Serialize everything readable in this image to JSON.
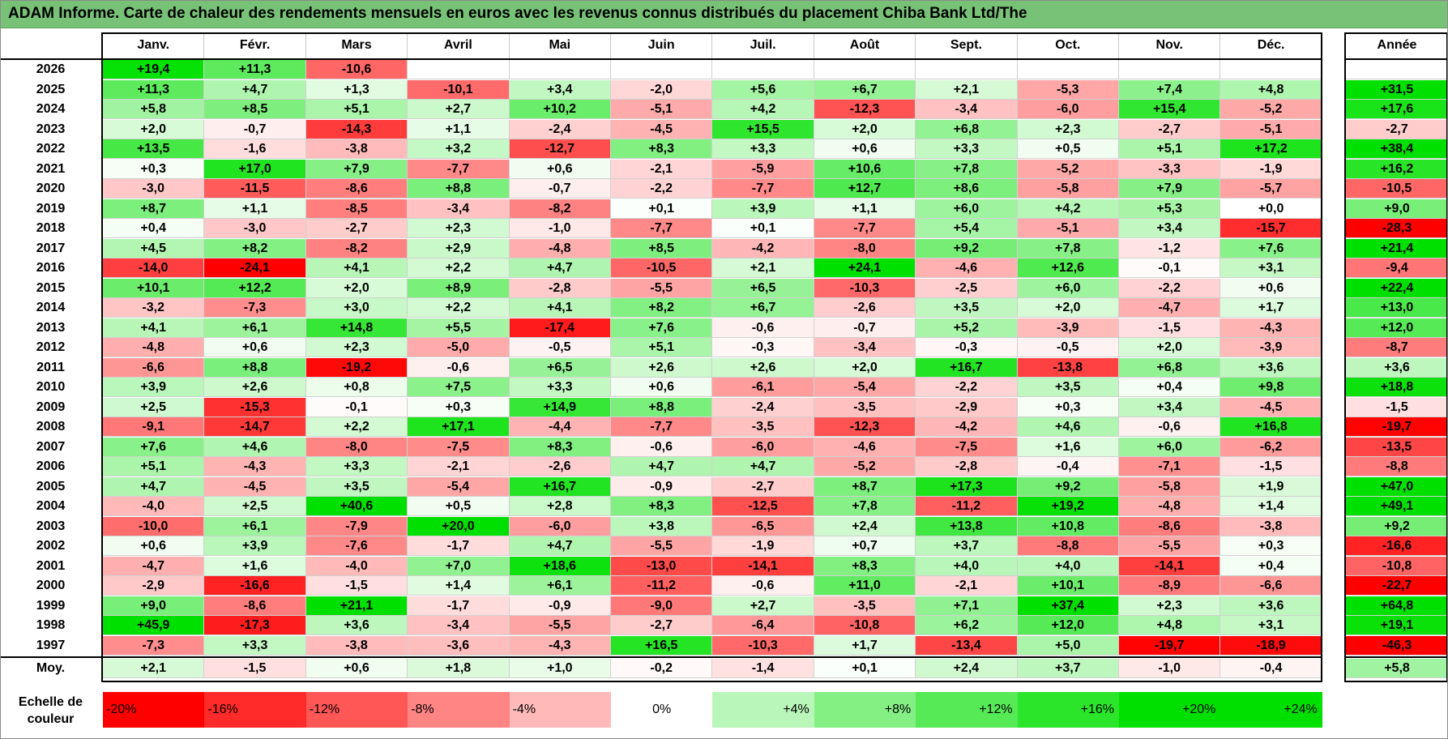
{
  "title": "ADAM Informe. Carte de chaleur des rendements mensuels en euros avec les revenus connus distribués du placement Chiba Bank Ltd/The",
  "chart_data": {
    "type": "heatmap",
    "title": "ADAM Informe. Carte de chaleur des rendements mensuels en euros avec les revenus connus distribués du placement Chiba Bank Ltd/The",
    "columns": [
      "Janv.",
      "Févr.",
      "Mars",
      "Avril",
      "Mai",
      "Juin",
      "Juil.",
      "Août",
      "Sept.",
      "Oct.",
      "Nov.",
      "Déc."
    ],
    "year_column": "Année",
    "rows": [
      {
        "year": "2026",
        "values": [
          "+19,4",
          "+11,3",
          "-10,6",
          "",
          "",
          "",
          "",
          "",
          "",
          "",
          "",
          ""
        ],
        "annual": ""
      },
      {
        "year": "2025",
        "values": [
          "+11,3",
          "+4,7",
          "+1,3",
          "-10,1",
          "+3,4",
          "-2,0",
          "+5,6",
          "+6,7",
          "+2,1",
          "-5,3",
          "+7,4",
          "+4,8"
        ],
        "annual": "+31,5"
      },
      {
        "year": "2024",
        "values": [
          "+5,8",
          "+8,5",
          "+5,1",
          "+2,7",
          "+10,2",
          "-5,1",
          "+4,2",
          "-12,3",
          "-3,4",
          "-6,0",
          "+15,4",
          "-5,2"
        ],
        "annual": "+17,6"
      },
      {
        "year": "2023",
        "values": [
          "+2,0",
          "-0,7",
          "-14,3",
          "+1,1",
          "-2,4",
          "-4,5",
          "+15,5",
          "+2,0",
          "+6,8",
          "+2,3",
          "-2,7",
          "-5,1"
        ],
        "annual": "-2,7"
      },
      {
        "year": "2022",
        "values": [
          "+13,5",
          "-1,6",
          "-3,8",
          "+3,2",
          "-12,7",
          "+8,3",
          "+3,3",
          "+0,6",
          "+3,3",
          "+0,5",
          "+5,1",
          "+17,2"
        ],
        "annual": "+38,4"
      },
      {
        "year": "2021",
        "values": [
          "+0,3",
          "+17,0",
          "+7,9",
          "-7,7",
          "+0,6",
          "-2,1",
          "-5,9",
          "+10,6",
          "+7,8",
          "-5,2",
          "-3,3",
          "-1,9"
        ],
        "annual": "+16,2"
      },
      {
        "year": "2020",
        "values": [
          "-3,0",
          "-11,5",
          "-8,6",
          "+8,8",
          "-0,7",
          "-2,2",
          "-7,7",
          "+12,7",
          "+8,6",
          "-5,8",
          "+7,9",
          "-5,7"
        ],
        "annual": "-10,5"
      },
      {
        "year": "2019",
        "values": [
          "+8,7",
          "+1,1",
          "-8,5",
          "-3,4",
          "-8,2",
          "+0,1",
          "+3,9",
          "+1,1",
          "+6,0",
          "+4,2",
          "+5,3",
          "+0,0"
        ],
        "annual": "+9,0"
      },
      {
        "year": "2018",
        "values": [
          "+0,4",
          "-3,0",
          "-2,7",
          "+2,3",
          "-1,0",
          "-7,7",
          "+0,1",
          "-7,7",
          "+5,4",
          "-5,1",
          "+3,4",
          "-15,7"
        ],
        "annual": "-28,3"
      },
      {
        "year": "2017",
        "values": [
          "+4,5",
          "+8,2",
          "-8,2",
          "+2,9",
          "-4,8",
          "+8,5",
          "-4,2",
          "-8,0",
          "+9,2",
          "+7,8",
          "-1,2",
          "+7,6"
        ],
        "annual": "+21,4"
      },
      {
        "year": "2016",
        "values": [
          "-14,0",
          "-24,1",
          "+4,1",
          "+2,2",
          "+4,7",
          "-10,5",
          "+2,1",
          "+24,1",
          "-4,6",
          "+12,6",
          "-0,1",
          "+3,1"
        ],
        "annual": "-9,4"
      },
      {
        "year": "2015",
        "values": [
          "+10,1",
          "+12,2",
          "+2,0",
          "+8,9",
          "-2,8",
          "-5,5",
          "+6,5",
          "-10,3",
          "-2,5",
          "+6,0",
          "-2,2",
          "+0,6"
        ],
        "annual": "+22,4"
      },
      {
        "year": "2014",
        "values": [
          "-3,2",
          "-7,3",
          "+3,0",
          "+2,2",
          "+4,1",
          "+8,2",
          "+6,7",
          "-2,6",
          "+3,5",
          "+2,0",
          "-4,7",
          "+1,7"
        ],
        "annual": "+13,0"
      },
      {
        "year": "2013",
        "values": [
          "+4,1",
          "+6,1",
          "+14,8",
          "+5,5",
          "-17,4",
          "+7,6",
          "-0,6",
          "-0,7",
          "+5,2",
          "-3,9",
          "-1,5",
          "-4,3"
        ],
        "annual": "+12,0"
      },
      {
        "year": "2012",
        "values": [
          "-4,8",
          "+0,6",
          "+2,3",
          "-5,0",
          "-0,5",
          "+5,1",
          "-0,3",
          "-3,4",
          "-0,3",
          "-0,5",
          "+2,0",
          "-3,9"
        ],
        "annual": "-8,7"
      },
      {
        "year": "2011",
        "values": [
          "-6,6",
          "+8,8",
          "-19,2",
          "-0,6",
          "+6,5",
          "+2,6",
          "+2,6",
          "+2,0",
          "+16,7",
          "-13,8",
          "+6,8",
          "+3,6"
        ],
        "annual": "+3,6"
      },
      {
        "year": "2010",
        "values": [
          "+3,9",
          "+2,6",
          "+0,8",
          "+7,5",
          "+3,3",
          "+0,6",
          "-6,1",
          "-5,4",
          "-2,2",
          "+3,5",
          "+0,4",
          "+9,8"
        ],
        "annual": "+18,8"
      },
      {
        "year": "2009",
        "values": [
          "+2,5",
          "-15,3",
          "-0,1",
          "+0,3",
          "+14,9",
          "+8,8",
          "-2,4",
          "-3,5",
          "-2,9",
          "+0,3",
          "+3,4",
          "-4,5"
        ],
        "annual": "-1,5"
      },
      {
        "year": "2008",
        "values": [
          "-9,1",
          "-14,7",
          "+2,2",
          "+17,1",
          "-4,4",
          "-7,7",
          "-3,5",
          "-12,3",
          "-4,2",
          "+4,6",
          "-0,6",
          "+16,8"
        ],
        "annual": "-19,7"
      },
      {
        "year": "2007",
        "values": [
          "+7,6",
          "+4,6",
          "-8,0",
          "-7,5",
          "+8,3",
          "-0,6",
          "-6,0",
          "-4,6",
          "-7,5",
          "+1,6",
          "+6,0",
          "-6,2"
        ],
        "annual": "-13,5"
      },
      {
        "year": "2006",
        "values": [
          "+5,1",
          "-4,3",
          "+3,3",
          "-2,1",
          "-2,6",
          "+4,7",
          "+4,7",
          "-5,2",
          "-2,8",
          "-0,4",
          "-7,1",
          "-1,5"
        ],
        "annual": "-8,8"
      },
      {
        "year": "2005",
        "values": [
          "+4,7",
          "-4,5",
          "+3,5",
          "-5,4",
          "+16,7",
          "-0,9",
          "-2,7",
          "+8,7",
          "+17,3",
          "+9,2",
          "-5,8",
          "+1,9"
        ],
        "annual": "+47,0"
      },
      {
        "year": "2004",
        "values": [
          "-4,0",
          "+2,5",
          "+40,6",
          "+0,5",
          "+2,8",
          "+8,3",
          "-12,5",
          "+7,8",
          "-11,2",
          "+19,2",
          "-4,8",
          "+1,4"
        ],
        "annual": "+49,1"
      },
      {
        "year": "2003",
        "values": [
          "-10,0",
          "+6,1",
          "-7,9",
          "+20,0",
          "-6,0",
          "+3,8",
          "-6,5",
          "+2,4",
          "+13,8",
          "+10,8",
          "-8,6",
          "-3,8"
        ],
        "annual": "+9,2"
      },
      {
        "year": "2002",
        "values": [
          "+0,6",
          "+3,9",
          "-7,6",
          "-1,7",
          "+4,7",
          "-5,5",
          "-1,9",
          "+0,7",
          "+3,7",
          "-8,8",
          "-5,5",
          "+0,3"
        ],
        "annual": "-16,6"
      },
      {
        "year": "2001",
        "values": [
          "-4,7",
          "+1,6",
          "-4,0",
          "+7,0",
          "+18,6",
          "-13,0",
          "-14,1",
          "+8,3",
          "+4,0",
          "+4,0",
          "-14,1",
          "+0,4"
        ],
        "annual": "-10,8"
      },
      {
        "year": "2000",
        "values": [
          "-2,9",
          "-16,6",
          "-1,5",
          "+1,4",
          "+6,1",
          "-11,2",
          "-0,6",
          "+11,0",
          "-2,1",
          "+10,1",
          "-8,9",
          "-6,6"
        ],
        "annual": "-22,7"
      },
      {
        "year": "1999",
        "values": [
          "+9,0",
          "-8,6",
          "+21,1",
          "-1,7",
          "-0,9",
          "-9,0",
          "+2,7",
          "-3,5",
          "+7,1",
          "+37,4",
          "+2,3",
          "+3,6"
        ],
        "annual": "+64,8"
      },
      {
        "year": "1998",
        "values": [
          "+45,9",
          "-17,3",
          "+3,6",
          "-3,4",
          "-5,5",
          "-2,7",
          "-6,4",
          "-10,8",
          "+6,2",
          "+12,0",
          "+4,8",
          "+3,1"
        ],
        "annual": "+19,1"
      },
      {
        "year": "1997",
        "values": [
          "-7,3",
          "+3,3",
          "-3,8",
          "-3,6",
          "-4,3",
          "+16,5",
          "-10,3",
          "+1,7",
          "-13,4",
          "+5,0",
          "-19,7",
          "-18,9"
        ],
        "annual": "-46,3"
      }
    ],
    "average": {
      "label": "Moy.",
      "values": [
        "+2,1",
        "-1,5",
        "+0,6",
        "+1,8",
        "+1,0",
        "-0,2",
        "-1,4",
        "+0,1",
        "+2,4",
        "+3,7",
        "-1,0",
        "-0,4"
      ],
      "annual": "+5,8"
    },
    "scale": {
      "label_line1": "Echelle de",
      "label_line2": "couleur",
      "steps": [
        {
          "label": "-20%",
          "value": -20
        },
        {
          "label": "-16%",
          "value": -16
        },
        {
          "label": "-12%",
          "value": -12
        },
        {
          "label": "-8%",
          "value": -8
        },
        {
          "label": "-4%",
          "value": -4
        },
        {
          "label": "0%",
          "value": 0
        },
        {
          "label": "+4%",
          "value": 4
        },
        {
          "label": "+8%",
          "value": 8
        },
        {
          "label": "+12%",
          "value": 12
        },
        {
          "label": "+16%",
          "value": 16
        },
        {
          "label": "+20%",
          "value": 20
        },
        {
          "label": "+24%",
          "value": 24
        }
      ]
    },
    "colors": {
      "negative_max": "#ff0000",
      "neutral": "#ffffff",
      "positive_max": "#00e000"
    }
  }
}
